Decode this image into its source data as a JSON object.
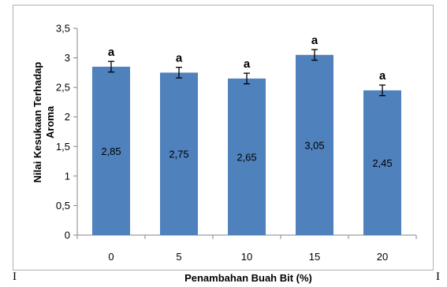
{
  "chart_data": {
    "type": "bar",
    "title": "",
    "xlabel": "Penambahan Buah Bit (%)",
    "ylabel_lines": [
      "Nilai Kesukaan Terhadap",
      "Aroma"
    ],
    "categories": [
      "0",
      "5",
      "10",
      "15",
      "20"
    ],
    "values": [
      2.85,
      2.75,
      2.65,
      3.05,
      2.45
    ],
    "value_labels": [
      "2,85",
      "2,75",
      "2,65",
      "3,05",
      "2,45"
    ],
    "error": [
      0.09,
      0.09,
      0.09,
      0.09,
      0.09
    ],
    "significance": [
      "a",
      "a",
      "a",
      "a",
      "a"
    ],
    "ylim": [
      0,
      3.5
    ],
    "yticks": [
      0,
      0.5,
      1,
      1.5,
      2,
      2.5,
      3,
      3.5
    ],
    "ytick_labels": [
      "0",
      "0,5",
      "1",
      "1,5",
      "2",
      "2,5",
      "3",
      "3,5"
    ],
    "bar_color": "#4F81BD",
    "grid": false,
    "legend": "none"
  },
  "edge_left_glyph": "I",
  "edge_right_glyph": "I"
}
